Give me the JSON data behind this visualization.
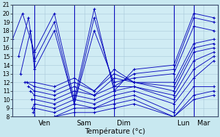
{
  "xlabel": "Température (°c)",
  "bg_color": "#c8e8f0",
  "plot_bg": "#d0ecf4",
  "grid_color": "#a8c8d8",
  "line_color": "#0000bb",
  "ylim": [
    8,
    21
  ],
  "yticks": [
    8,
    9,
    10,
    11,
    12,
    13,
    14,
    15,
    16,
    17,
    18,
    19,
    20,
    21
  ],
  "day_positions": [
    0.25,
    1.25,
    2.25,
    3.75,
    4.25
  ],
  "day_labels": [
    "Ven",
    "Sam",
    "Dim",
    "Lun",
    "Mar"
  ],
  "vline_positions": [
    0.0,
    1.0,
    2.0,
    3.5,
    4.0
  ],
  "xlim": [
    -0.55,
    4.6
  ],
  "series": [
    {
      "x": [
        -0.55,
        -0.3,
        0.0,
        0.5,
        1.0,
        1.5,
        2.0,
        2.5,
        3.5,
        4.0,
        4.5
      ],
      "y": [
        17.0,
        20.0,
        15.5,
        20.0,
        10.0,
        20.5,
        11.0,
        13.5,
        14.0,
        20.0,
        19.5
      ]
    },
    {
      "x": [
        -0.4,
        -0.15,
        0.0,
        0.5,
        1.0,
        1.5,
        2.0,
        2.5,
        3.5,
        4.0,
        4.5
      ],
      "y": [
        15.0,
        19.5,
        14.5,
        19.0,
        9.5,
        19.5,
        11.5,
        13.0,
        13.5,
        19.5,
        19.0
      ]
    },
    {
      "x": [
        -0.35,
        -0.1,
        0.0,
        0.5,
        1.0,
        1.5,
        2.0,
        2.5,
        3.5,
        4.0,
        4.5
      ],
      "y": [
        13.0,
        18.0,
        13.5,
        18.0,
        9.5,
        18.0,
        12.0,
        12.5,
        13.0,
        18.5,
        18.0
      ]
    },
    {
      "x": [
        -0.25,
        0.0,
        0.5,
        1.0,
        1.5,
        2.0,
        2.5,
        3.5,
        4.0,
        4.5
      ],
      "y": [
        12.0,
        12.0,
        11.5,
        12.5,
        11.0,
        13.5,
        12.0,
        12.0,
        16.5,
        17.0
      ]
    },
    {
      "x": [
        -0.2,
        0.0,
        0.5,
        1.0,
        1.5,
        2.0,
        2.5,
        3.5,
        4.0,
        4.5
      ],
      "y": [
        12.0,
        11.5,
        11.0,
        12.0,
        11.0,
        13.0,
        12.0,
        11.5,
        16.0,
        16.5
      ]
    },
    {
      "x": [
        -0.15,
        0.0,
        0.5,
        1.0,
        1.5,
        2.0,
        2.5,
        3.5,
        4.0,
        4.5
      ],
      "y": [
        11.5,
        11.0,
        10.5,
        11.5,
        10.5,
        12.5,
        12.0,
        11.0,
        15.5,
        16.0
      ]
    },
    {
      "x": [
        -0.1,
        0.0,
        0.5,
        1.0,
        1.5,
        2.0,
        2.5,
        3.5,
        4.0,
        4.5
      ],
      "y": [
        11.0,
        10.5,
        10.0,
        11.0,
        10.5,
        11.5,
        11.5,
        10.5,
        14.5,
        15.5
      ]
    },
    {
      "x": [
        -0.07,
        0.0,
        0.5,
        1.0,
        1.5,
        2.0,
        2.5,
        3.5,
        4.0,
        4.5
      ],
      "y": [
        10.0,
        10.0,
        9.5,
        10.5,
        10.0,
        11.0,
        11.5,
        10.0,
        13.5,
        15.0
      ]
    },
    {
      "x": [
        -0.05,
        0.0,
        0.5,
        1.0,
        1.5,
        2.0,
        2.5,
        3.5,
        4.0,
        4.5
      ],
      "y": [
        9.0,
        9.5,
        9.0,
        10.0,
        9.5,
        10.5,
        11.0,
        9.5,
        12.5,
        14.5
      ]
    },
    {
      "x": [
        -0.03,
        0.0,
        0.5,
        1.0,
        1.5,
        2.0,
        2.5,
        3.5,
        4.0,
        4.5
      ],
      "y": [
        8.5,
        9.0,
        8.5,
        9.5,
        9.0,
        10.0,
        10.5,
        8.5,
        11.5,
        11.5
      ]
    },
    {
      "x": [
        0.0,
        0.5,
        1.0,
        1.5,
        2.0,
        2.5,
        3.5,
        4.0,
        4.5
      ],
      "y": [
        8.0,
        8.0,
        9.0,
        9.0,
        9.5,
        10.0,
        8.0,
        10.5,
        11.0
      ]
    },
    {
      "x": [
        0.0,
        0.5,
        1.0,
        1.5,
        2.0,
        2.5,
        3.5,
        4.0,
        4.5
      ],
      "y": [
        8.0,
        8.0,
        8.5,
        8.5,
        9.0,
        9.5,
        8.0,
        10.0,
        10.5
      ]
    }
  ]
}
